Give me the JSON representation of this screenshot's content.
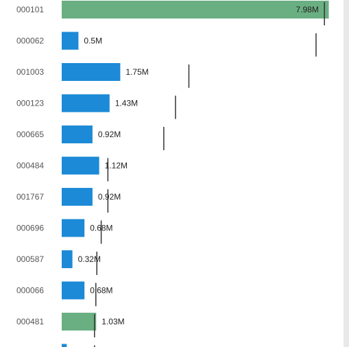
{
  "chart_data": {
    "type": "bar",
    "orientation": "horizontal",
    "title": "",
    "xlabel": "",
    "ylabel": "",
    "xlim": [
      0,
      8.4
    ],
    "grid": false,
    "legend": "none",
    "categories": [
      "000101",
      "000062",
      "001003",
      "000123",
      "000665",
      "000484",
      "001767",
      "000696",
      "000587",
      "000066",
      "000481",
      ""
    ],
    "values": [
      7.98,
      0.5,
      1.75,
      1.43,
      0.92,
      1.12,
      0.92,
      0.68,
      0.32,
      0.68,
      1.03,
      0.15
    ],
    "value_labels": [
      "7.98M",
      "0.5M",
      "1.75M",
      "1.43M",
      "0.92M",
      "1.12M",
      "0.92M",
      "0.68M",
      "0.32M",
      "0.68M",
      "1.03M",
      ""
    ],
    "reference_values": [
      7.85,
      7.6,
      3.8,
      3.4,
      3.05,
      1.38,
      1.38,
      1.18,
      1.05,
      1.02,
      0.98,
      0.98
    ],
    "bar_colors": [
      "#6aaf82",
      "#1c8ad6",
      "#1c8ad6",
      "#1c8ad6",
      "#1c8ad6",
      "#1c8ad6",
      "#1c8ad6",
      "#1c8ad6",
      "#1c8ad6",
      "#1c8ad6",
      "#6aaf82",
      "#1c8ad6"
    ],
    "reference_color": "#333333"
  }
}
